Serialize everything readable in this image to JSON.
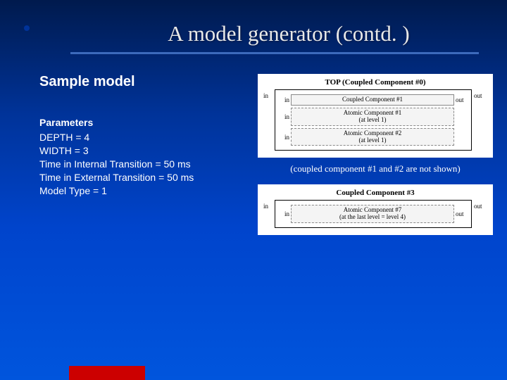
{
  "title": "A model generator (contd. )",
  "subtitle": "Sample model",
  "parameters": {
    "heading": "Parameters",
    "lines": {
      "l0": "DEPTH = 4",
      "l1": "WIDTH = 3",
      "l2": "Time in Internal Transition = 50 ms",
      "l3": "Time in External Transition = 50 ms",
      "l4": "Model Type = 1"
    }
  },
  "caption": "(coupled component #1 and #2 are not shown)",
  "diagram1": {
    "title": "TOP (Coupled Component #0)",
    "in": "in",
    "out": "out",
    "rows": {
      "r0": {
        "in": "in",
        "label": "Coupled Component #1",
        "out": "out"
      },
      "r1": {
        "in": "in",
        "label_l1": "Atomic Component #1",
        "label_l2": "(at level 1)"
      },
      "r2": {
        "in": "in",
        "label_l1": "Atomic Component #2",
        "label_l2": "(at level 1)"
      }
    }
  },
  "diagram2": {
    "title": "Coupled Component #3",
    "in": "in",
    "out": "out",
    "row": {
      "in": "in",
      "label_l1": "Atomic Component #7",
      "label_l2": "(at the last level = level 4)",
      "out": "out"
    }
  },
  "colors": {
    "bg_top": "#001a4d",
    "bg_bottom": "#0055dd",
    "accent_red": "#cc0000",
    "text": "#ffffff",
    "underline": "#5588dd"
  }
}
